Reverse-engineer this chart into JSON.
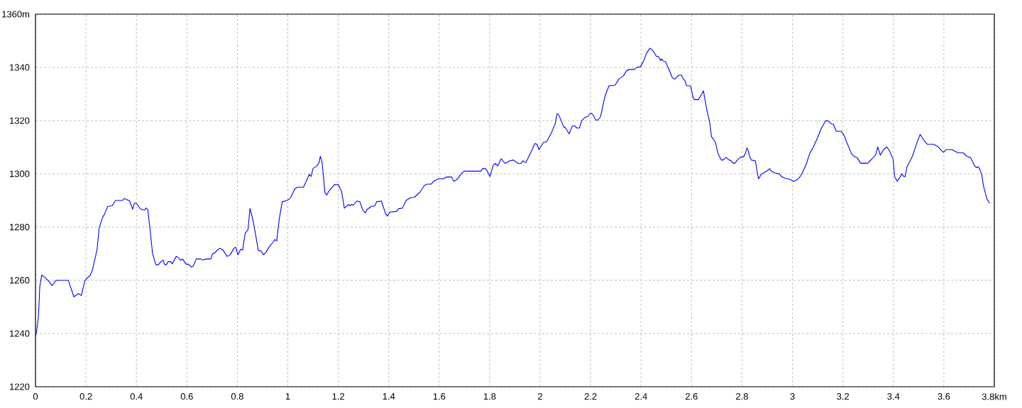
{
  "chart_data": {
    "type": "line",
    "x": [
      0,
      0.004,
      0.012,
      0.017,
      0.025,
      0.03,
      0.04,
      0.051,
      0.066,
      0.082,
      0.13,
      0.152,
      0.17,
      0.182,
      0.195,
      0.206,
      0.216,
      0.226,
      0.244,
      0.252,
      0.266,
      0.273,
      0.286,
      0.304,
      0.317,
      0.345,
      0.352,
      0.361,
      0.373,
      0.385,
      0.392,
      0.399,
      0.416,
      0.433,
      0.438,
      0.445,
      0.453,
      0.464,
      0.477,
      0.487,
      0.497,
      0.506,
      0.511,
      0.518,
      0.526,
      0.536,
      0.542,
      0.558,
      0.568,
      0.575,
      0.583,
      0.597,
      0.607,
      0.617,
      0.625,
      0.637,
      0.656,
      0.663,
      0.676,
      0.695,
      0.702,
      0.709,
      0.718,
      0.73,
      0.743,
      0.759,
      0.772,
      0.786,
      0.794,
      0.802,
      0.813,
      0.821,
      0.831,
      0.842,
      0.85,
      0.862,
      0.873,
      0.883,
      0.893,
      0.904,
      0.914,
      0.925,
      0.943,
      0.948,
      0.956,
      0.966,
      0.978,
      0.997,
      1.009,
      1.028,
      1.038,
      1.062,
      1.071,
      1.085,
      1.092,
      1.1,
      1.115,
      1.123,
      1.129,
      1.136,
      1.147,
      1.154,
      1.162,
      1.186,
      1.193,
      1.2,
      1.213,
      1.224,
      1.241,
      1.247,
      1.252,
      1.26,
      1.273,
      1.286,
      1.296,
      1.307,
      1.314,
      1.332,
      1.345,
      1.352,
      1.371,
      1.387,
      1.394,
      1.404,
      1.431,
      1.439,
      1.454,
      1.469,
      1.485,
      1.501,
      1.523,
      1.542,
      1.552,
      1.568,
      1.578,
      1.597,
      1.617,
      1.628,
      1.649,
      1.658,
      1.672,
      1.687,
      1.699,
      1.765,
      1.773,
      1.786,
      1.801,
      1.814,
      1.822,
      1.832,
      1.846,
      1.861,
      1.879,
      1.894,
      1.913,
      1.925,
      1.931,
      1.943,
      1.967,
      1.979,
      1.988,
      1.995,
      2.013,
      2.026,
      2.045,
      2.06,
      2.067,
      2.074,
      2.084,
      2.094,
      2.098,
      2.115,
      2.127,
      2.135,
      2.146,
      2.156,
      2.164,
      2.177,
      2.189,
      2.2,
      2.208,
      2.221,
      2.229,
      2.239,
      2.257,
      2.273,
      2.297,
      2.312,
      2.33,
      2.343,
      2.355,
      2.373,
      2.384,
      2.397,
      2.409,
      2.422,
      2.435,
      2.448,
      2.46,
      2.469,
      2.477,
      2.481,
      2.489,
      2.497,
      2.509,
      2.524,
      2.534,
      2.549,
      2.56,
      2.568,
      2.575,
      2.58,
      2.596,
      2.606,
      2.612,
      2.627,
      2.637,
      2.647,
      2.661,
      2.672,
      2.679,
      2.694,
      2.705,
      2.718,
      2.726,
      2.737,
      2.749,
      2.756,
      2.765,
      2.772,
      2.782,
      2.794,
      2.806,
      2.813,
      2.82,
      2.825,
      2.83,
      2.837,
      2.853,
      2.861,
      2.866,
      2.876,
      2.889,
      2.903,
      2.91,
      2.915,
      2.931,
      2.948,
      2.956,
      2.972,
      2.988,
      3.005,
      3.019,
      3.029,
      3.039,
      3.055,
      3.068,
      3.083,
      3.099,
      3.114,
      3.131,
      3.141,
      3.153,
      3.162,
      3.174,
      3.193,
      3.203,
      3.214,
      3.234,
      3.245,
      3.257,
      3.27,
      3.298,
      3.314,
      3.33,
      3.338,
      3.348,
      3.361,
      3.374,
      3.385,
      3.399,
      3.405,
      3.415,
      3.425,
      3.433,
      3.441,
      3.447,
      3.454,
      3.475,
      3.493,
      3.506,
      3.518,
      3.534,
      3.56,
      3.578,
      3.592,
      3.599,
      3.609,
      3.633,
      3.656,
      3.677,
      3.69,
      3.706,
      3.721,
      3.729,
      3.736,
      3.742,
      3.75,
      3.757,
      3.771,
      3.781
    ],
    "values": [
      1239,
      1240.5,
      1246.6,
      1257.7,
      1262,
      1261.6,
      1260.8,
      1259.8,
      1258,
      1260,
      1260,
      1253.8,
      1255,
      1254.3,
      1259.7,
      1261,
      1261.7,
      1264,
      1271.5,
      1279.5,
      1283.7,
      1284.7,
      1287.8,
      1288,
      1290,
      1290,
      1290.7,
      1290.3,
      1289.8,
      1286.7,
      1289,
      1289,
      1286.8,
      1286.4,
      1287.2,
      1286.5,
      1280,
      1270,
      1265.8,
      1265.8,
      1267,
      1267.6,
      1266,
      1265.8,
      1267,
      1267,
      1266.2,
      1269,
      1268.4,
      1267.5,
      1268,
      1266,
      1266,
      1265,
      1265.3,
      1268,
      1268,
      1267.6,
      1268,
      1268,
      1270,
      1270.2,
      1271.1,
      1272,
      1271.4,
      1269,
      1269.6,
      1272,
      1272.4,
      1269.6,
      1271.6,
      1271.4,
      1277.7,
      1278.9,
      1287,
      1282.6,
      1276.8,
      1271.2,
      1271,
      1269.6,
      1270.6,
      1272.4,
      1274.5,
      1275.3,
      1274.8,
      1283,
      1289.5,
      1290,
      1290.7,
      1294.4,
      1295,
      1295,
      1296.8,
      1299.8,
      1299,
      1302,
      1303,
      1304,
      1306.6,
      1304.2,
      1292.9,
      1292,
      1293.4,
      1296,
      1295.9,
      1296,
      1293.4,
      1287.1,
      1288.5,
      1288,
      1288.5,
      1288.2,
      1289.8,
      1289.5,
      1286.6,
      1285.3,
      1286.6,
      1287.8,
      1288,
      1289.5,
      1289.8,
      1285.1,
      1284.1,
      1285.6,
      1285.9,
      1286.9,
      1287.1,
      1290,
      1291,
      1291.2,
      1293,
      1295.7,
      1296.1,
      1296.1,
      1297.2,
      1298.1,
      1298.1,
      1298.8,
      1298.8,
      1297.2,
      1298,
      1300,
      1301,
      1301,
      1302,
      1301.8,
      1299,
      1303.2,
      1303.9,
      1303,
      1305.7,
      1303.9,
      1304.9,
      1305.2,
      1303.9,
      1303.9,
      1304.9,
      1304.2,
      1308.8,
      1311.4,
      1311.1,
      1309.1,
      1311.8,
      1312.1,
      1315.5,
      1318.9,
      1322.6,
      1322.1,
      1319.9,
      1317.5,
      1317.6,
      1315,
      1317.9,
      1318.1,
      1317.2,
      1317.2,
      1319.9,
      1321.2,
      1321.6,
      1322.8,
      1322.4,
      1320.2,
      1320.2,
      1321.4,
      1329.2,
      1333.1,
      1333.3,
      1335.6,
      1336.8,
      1338.8,
      1339.2,
      1339.2,
      1340,
      1340.2,
      1342.2,
      1345.4,
      1347.2,
      1346.2,
      1344.2,
      1344.1,
      1342.6,
      1343.2,
      1342.3,
      1342.2,
      1339.5,
      1336.1,
      1335.6,
      1337.1,
      1337.1,
      1335.6,
      1334.9,
      1333.1,
      1333.1,
      1328.7,
      1327.9,
      1327.9,
      1329.4,
      1331.2,
      1323.8,
      1319.4,
      1314,
      1312.1,
      1307.6,
      1305.2,
      1305.2,
      1306.2,
      1305.2,
      1305,
      1304,
      1304,
      1305.2,
      1306.2,
      1306.4,
      1307.6,
      1309.8,
      1308.6,
      1306.5,
      1305.2,
      1304.9,
      1300.3,
      1298.1,
      1299.8,
      1300.6,
      1301.3,
      1302,
      1301.1,
      1300.3,
      1300,
      1299,
      1298.3,
      1298,
      1297.2,
      1297.8,
      1298.8,
      1300.3,
      1303.7,
      1307.6,
      1310.1,
      1313.5,
      1317,
      1319.9,
      1319.9,
      1318.9,
      1318.6,
      1316,
      1316,
      1314.8,
      1312.1,
      1307.6,
      1306.5,
      1306,
      1304,
      1304,
      1305.5,
      1307.2,
      1310.1,
      1307,
      1309.1,
      1310.1,
      1308.6,
      1305.4,
      1299,
      1297.2,
      1298.5,
      1300,
      1299,
      1299,
      1302.7,
      1306.5,
      1311.6,
      1314.8,
      1313,
      1311.1,
      1311.1,
      1310.1,
      1308.6,
      1308.1,
      1309.1,
      1309.1,
      1307.9,
      1307.9,
      1306.7,
      1306,
      1303.2,
      1302.3,
      1302.7,
      1301.8,
      1299.8,
      1295.4,
      1290.5,
      1289
    ],
    "color": "#0000ff",
    "xlim": [
      0,
      3.8
    ],
    "xticks": [
      0,
      0.2,
      0.4,
      0.6,
      0.8,
      1,
      1.2,
      1.4,
      1.6,
      1.8,
      2,
      2.2,
      2.4,
      2.6,
      2.8,
      3,
      3.2,
      3.4,
      3.6,
      {
        "value": 3.8,
        "label": "3.8km"
      }
    ],
    "ylim": [
      1220,
      1360
    ],
    "yticks": [
      1220,
      1240,
      1260,
      1280,
      1300,
      1320,
      1340,
      {
        "value": 1360,
        "label": "1360m"
      }
    ],
    "grid": true,
    "marker": "none",
    "line_style": "solid"
  }
}
